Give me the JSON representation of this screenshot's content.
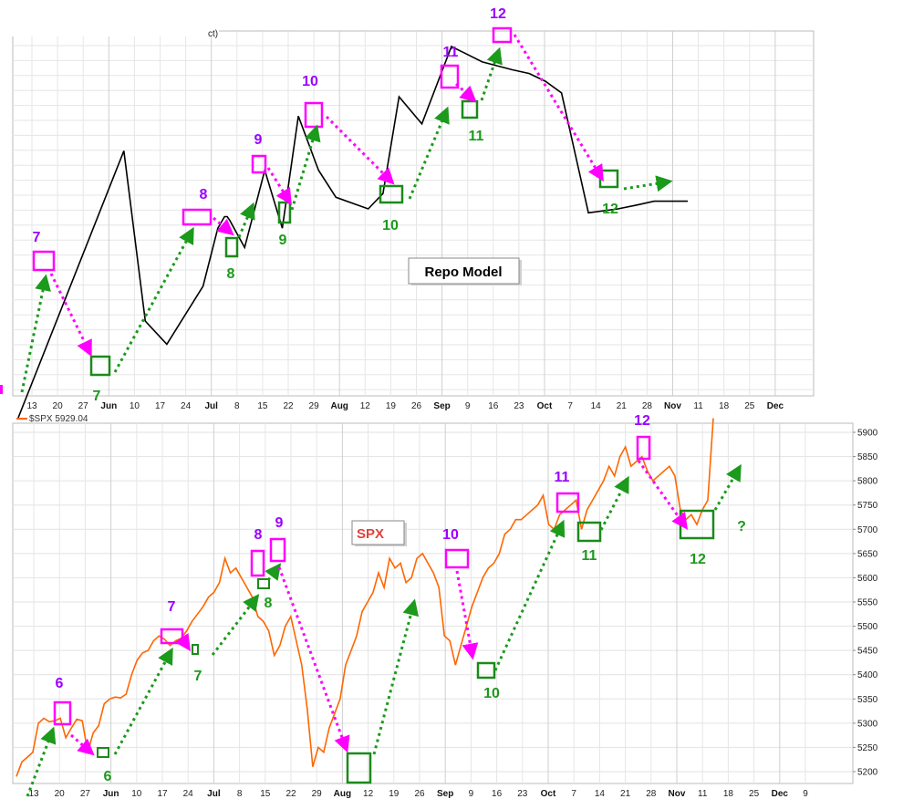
{
  "colors": {
    "peak": "#9b00ff",
    "trough": "#1b9a1b",
    "peak_box": "#ff00ff",
    "trough_box": "#1b8a1b",
    "repo_line": "#000000",
    "spx_line": "#ff6600",
    "spx_label": "#e0413a",
    "grid": "#e2e2e2"
  },
  "top_fragment": "ct)",
  "chart_data": [
    {
      "type": "line",
      "title": "Repo Model",
      "x_tick_labels": [
        "13",
        "20",
        "27",
        "Jun",
        "10",
        "17",
        "24",
        "Jul",
        "8",
        "15",
        "22",
        "29",
        "Aug",
        "12",
        "19",
        "26",
        "Sep",
        "9",
        "16",
        "23",
        "Oct",
        "7",
        "14",
        "21",
        "28",
        "Nov",
        "11",
        "18",
        "25",
        "Dec"
      ],
      "x_tick_bold": [
        "Jun",
        "Jul",
        "Aug",
        "Sep",
        "Oct",
        "Nov",
        "Dec"
      ],
      "series": [
        {
          "x": [
            0,
            1.6,
            3.2,
            4.8,
            6.4,
            8,
            9.6,
            11.2,
            13.9,
            15,
            15.5,
            15.7,
            15.9,
            17,
            18.5,
            19.8,
            21,
            22.5,
            23.8,
            26.2,
            27.3,
            28.5,
            30.2,
            32.4,
            34.7,
            36.9,
            38.2,
            39.4,
            40.6,
            42.6,
            44.8,
            46.2,
            47.5,
            48.7,
            50
          ],
          "values": [
            0,
            0,
            0,
            0,
            0,
            0.69,
            0.25,
            0.19,
            0.34,
            0.49,
            0.52,
            0.52,
            0.51,
            0.44,
            0.64,
            0.49,
            0.78,
            0.64,
            0.57,
            0.54,
            0.58,
            0.83,
            0.76,
            0.96,
            0.92,
            0.9,
            0.89,
            0.87,
            0.84,
            0.53,
            0.54,
            0.55,
            0.56,
            0.56,
            0.56
          ]
        }
      ],
      "peaks": [
        {
          "label": "7"
        },
        {
          "label": "8"
        },
        {
          "label": "9"
        },
        {
          "label": "10"
        },
        {
          "label": "11"
        },
        {
          "label": "12"
        }
      ],
      "troughs": [
        {
          "label": "7"
        },
        {
          "label": "8"
        },
        {
          "label": "9"
        },
        {
          "label": "10"
        },
        {
          "label": "11"
        },
        {
          "label": "12"
        }
      ]
    },
    {
      "type": "line",
      "title": "SPX",
      "legend": "$SPX 5929.04",
      "ylim": [
        5180,
        5920
      ],
      "y_ticks": [
        5200,
        5250,
        5300,
        5350,
        5400,
        5450,
        5500,
        5550,
        5600,
        5650,
        5700,
        5750,
        5800,
        5850,
        5900
      ],
      "x_tick_labels": [
        "13",
        "20",
        "27",
        "Jun",
        "10",
        "17",
        "24",
        "Jul",
        "8",
        "15",
        "22",
        "29",
        "Aug",
        "12",
        "19",
        "26",
        "Sep",
        "9",
        "16",
        "23",
        "Oct",
        "7",
        "14",
        "21",
        "28",
        "Nov",
        "11",
        "18",
        "25",
        "Dec",
        "9"
      ],
      "x_tick_bold": [
        "Jun",
        "Jul",
        "Aug",
        "Sep",
        "Oct",
        "Nov",
        "Dec"
      ],
      "series": [
        {
          "name": "$SPX",
          "values": [
            5190,
            5220,
            5230,
            5240,
            5300,
            5310,
            5303,
            5305,
            5310,
            5270,
            5290,
            5308,
            5305,
            5240,
            5280,
            5295,
            5340,
            5350,
            5354,
            5352,
            5360,
            5400,
            5430,
            5445,
            5450,
            5470,
            5480,
            5473,
            5460,
            5470,
            5475,
            5490,
            5510,
            5525,
            5540,
            5560,
            5570,
            5590,
            5640,
            5610,
            5620,
            5600,
            5580,
            5560,
            5520,
            5510,
            5490,
            5440,
            5460,
            5500,
            5520,
            5470,
            5420,
            5330,
            5210,
            5250,
            5240,
            5290,
            5320,
            5350,
            5420,
            5450,
            5480,
            5530,
            5550,
            5570,
            5610,
            5580,
            5640,
            5620,
            5630,
            5590,
            5600,
            5640,
            5650,
            5630,
            5610,
            5580,
            5480,
            5470,
            5420,
            5460,
            5500,
            5540,
            5570,
            5600,
            5620,
            5630,
            5650,
            5690,
            5700,
            5720,
            5720,
            5730,
            5740,
            5750,
            5770,
            5710,
            5700,
            5730,
            5740,
            5750,
            5760,
            5700,
            5740,
            5760,
            5780,
            5800,
            5830,
            5810,
            5850,
            5870,
            5830,
            5840,
            5850,
            5820,
            5800,
            5810,
            5820,
            5830,
            5810,
            5740,
            5720,
            5730,
            5710,
            5740,
            5760,
            5929
          ]
        }
      ],
      "peaks": [
        {
          "label": "6"
        },
        {
          "label": "7"
        },
        {
          "label": "8"
        },
        {
          "label": "9"
        },
        {
          "label": "10"
        },
        {
          "label": "11"
        },
        {
          "label": "12"
        }
      ],
      "troughs": [
        {
          "label": "6"
        },
        {
          "label": "7"
        },
        {
          "label": "8"
        },
        {
          "label": "10"
        },
        {
          "label": "11"
        },
        {
          "label": "12"
        }
      ],
      "outlook_label": "?"
    }
  ]
}
